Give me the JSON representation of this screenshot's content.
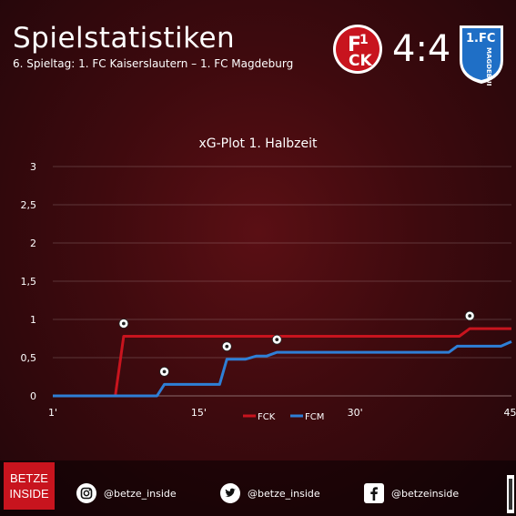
{
  "header": {
    "title": "Spielstatistiken",
    "subtitle": "6. Spieltag: 1. FC Kaiserslautern – 1. FC Magdeburg",
    "score": "4:4",
    "home_logo_text": "FCK",
    "away_logo_text": "1.FC MAGDEBURG"
  },
  "colors": {
    "home": "#c8141e",
    "away": "#2e7fd6",
    "background": "#3e0a0e"
  },
  "chart_data": {
    "type": "line",
    "title": "xG-Plot 1. Halbzeit",
    "xlim": [
      1,
      45
    ],
    "ylim": [
      0,
      3
    ],
    "x_ticks": [
      1,
      15,
      30,
      45
    ],
    "x_tick_labels": [
      "1'",
      "15'",
      "30'",
      "45'"
    ],
    "y_ticks": [
      0,
      0.5,
      1,
      1.5,
      2,
      2.5,
      3
    ],
    "y_tick_labels": [
      "0",
      "0,5",
      "1",
      "1,5",
      "2",
      "2,5",
      "3"
    ],
    "grid": "horizontal",
    "legend": "bottom-center",
    "series": [
      {
        "name": "FCK",
        "color": "#c8141e",
        "points": [
          [
            1,
            0
          ],
          [
            7,
            0
          ],
          [
            7.8,
            0.78
          ],
          [
            40,
            0.78
          ],
          [
            41,
            0.88
          ],
          [
            45,
            0.88
          ]
        ],
        "goals": [
          [
            7.8,
            0.78
          ],
          [
            41,
            0.88
          ]
        ]
      },
      {
        "name": "FCM",
        "color": "#2e7fd6",
        "points": [
          [
            1,
            0
          ],
          [
            11,
            0
          ],
          [
            11.7,
            0.15
          ],
          [
            17,
            0.15
          ],
          [
            17.7,
            0.48
          ],
          [
            19.5,
            0.48
          ],
          [
            20.5,
            0.52
          ],
          [
            21.5,
            0.52
          ],
          [
            22.5,
            0.57
          ],
          [
            39,
            0.57
          ],
          [
            39.8,
            0.65
          ],
          [
            44,
            0.65
          ],
          [
            45,
            0.71
          ]
        ],
        "goals": [
          [
            11.7,
            0.15
          ],
          [
            17.7,
            0.48
          ],
          [
            22.5,
            0.57
          ]
        ]
      }
    ]
  },
  "footer": {
    "brand": [
      "BETZE",
      "INSIDE"
    ],
    "instagram": "@betze_inside",
    "twitter": "@betze_inside",
    "facebook": "@betzeinside"
  }
}
